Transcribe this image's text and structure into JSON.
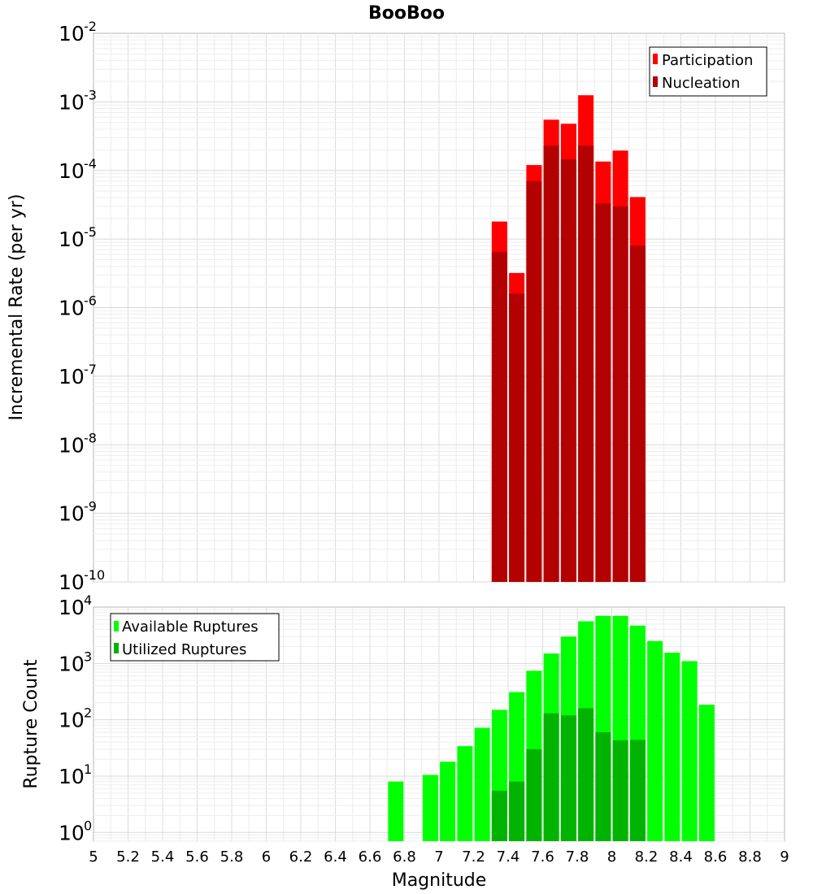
{
  "title": "BooBoo",
  "chart_data": [
    {
      "type": "bar",
      "name": "top",
      "ylabel": "Incremental Rate (per yr)",
      "xlabel": "",
      "yscale": "log",
      "ylim": [
        1e-10,
        0.01
      ],
      "xlim": [
        5,
        9
      ],
      "grid": true,
      "legend": "top-right",
      "yticks": [
        {
          "base": "10",
          "exp": "-2"
        },
        {
          "base": "10",
          "exp": "-3"
        },
        {
          "base": "10",
          "exp": "-4"
        },
        {
          "base": "10",
          "exp": "-5"
        },
        {
          "base": "10",
          "exp": "-6"
        },
        {
          "base": "10",
          "exp": "-7"
        },
        {
          "base": "10",
          "exp": "-8"
        },
        {
          "base": "10",
          "exp": "-9"
        },
        {
          "base": "10",
          "exp": "-10"
        }
      ],
      "x": [
        7.35,
        7.45,
        7.55,
        7.65,
        7.75,
        7.85,
        7.95,
        8.05,
        8.15
      ],
      "series": [
        {
          "name": "Participation",
          "color": "#ff0000",
          "values": [
            1.8e-05,
            3.2e-06,
            0.00012,
            0.00055,
            0.00048,
            0.00125,
            0.000135,
            0.000195,
            4.1e-05
          ]
        },
        {
          "name": "Nucleation",
          "color": "#b30000",
          "values": [
            6.5e-06,
            1.6e-06,
            7e-05,
            0.00023,
            0.000145,
            0.00023,
            3.3e-05,
            3e-05,
            8e-06
          ]
        }
      ]
    },
    {
      "type": "bar",
      "name": "bottom",
      "ylabel": "Rupture Count",
      "xlabel": "Magnitude",
      "yscale": "log",
      "ylim": [
        0.7,
        10000
      ],
      "xlim": [
        5,
        9
      ],
      "grid": true,
      "legend": "top-left",
      "yticks": [
        {
          "base": "10",
          "exp": "4"
        },
        {
          "base": "10",
          "exp": "3"
        },
        {
          "base": "10",
          "exp": "2"
        },
        {
          "base": "10",
          "exp": "1"
        },
        {
          "base": "10",
          "exp": "0"
        }
      ],
      "xticks": [
        "5",
        "5.2",
        "5.4",
        "5.6",
        "5.8",
        "6",
        "6.2",
        "6.4",
        "6.6",
        "6.8",
        "7",
        "7.2",
        "7.4",
        "7.6",
        "7.8",
        "8",
        "8.2",
        "8.4",
        "8.6",
        "8.8",
        "9"
      ],
      "x": [
        6.75,
        6.95,
        7.05,
        7.15,
        7.25,
        7.35,
        7.45,
        7.55,
        7.65,
        7.75,
        7.85,
        7.95,
        8.05,
        8.15,
        8.25,
        8.35,
        8.45,
        8.55
      ],
      "series": [
        {
          "name": "Available Ruptures",
          "color": "#00ff00",
          "values": [
            8,
            10.5,
            18,
            34,
            72,
            150,
            310,
            740,
            1500,
            3000,
            5600,
            7000,
            7000,
            4700,
            2500,
            1550,
            1100,
            185
          ]
        },
        {
          "name": "Utilized Ruptures",
          "color": "#00b300",
          "values": [
            null,
            null,
            null,
            null,
            null,
            5.5,
            8,
            30,
            130,
            120,
            160,
            60,
            43,
            44,
            null,
            null,
            null,
            null
          ]
        }
      ]
    }
  ]
}
